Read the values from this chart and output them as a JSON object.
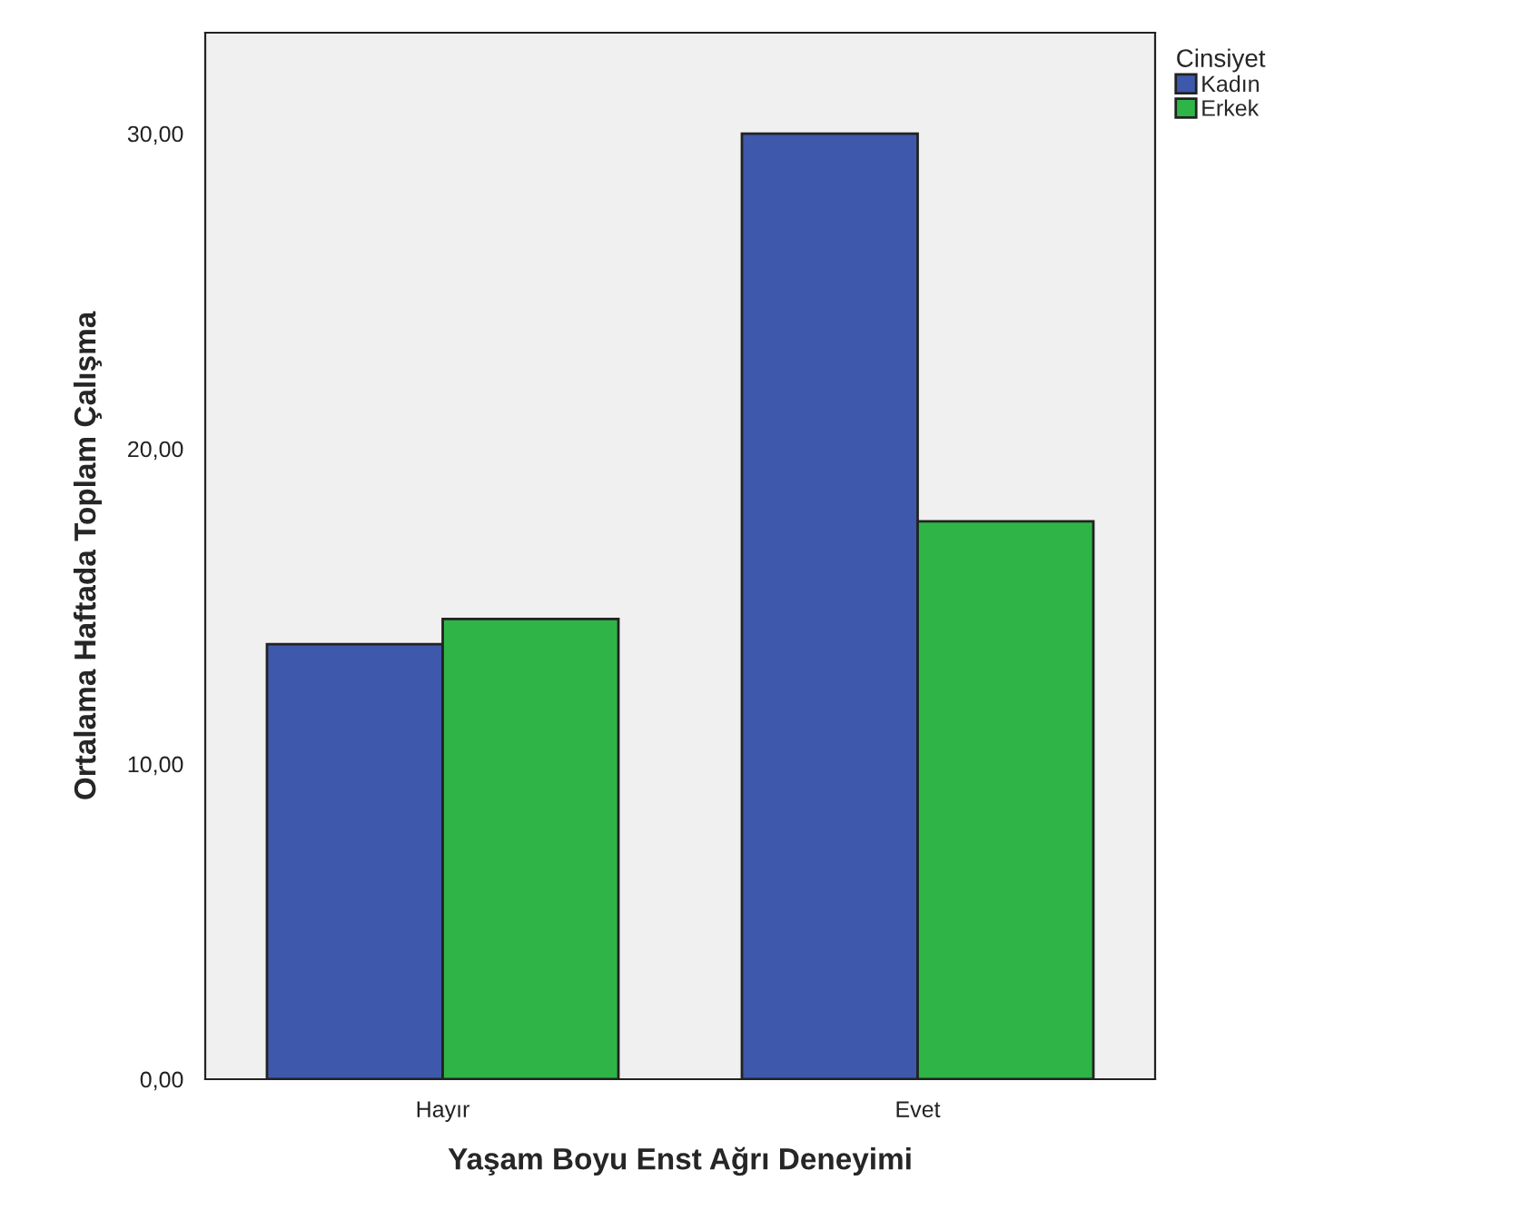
{
  "chart_data": {
    "type": "bar",
    "xlabel": "Yaşam Boyu Enst Ağrı Deneyimi",
    "ylabel": "Ortalama Haftada Toplam Çalışma",
    "legend_title": "Cinsiyet",
    "categories": [
      "Hayır",
      "Evet"
    ],
    "series": [
      {
        "name": "Kadın",
        "color": "#3e58ab",
        "values": [
          13.8,
          30.0
        ]
      },
      {
        "name": "Erkek",
        "color": "#2fb547",
        "values": [
          14.6,
          17.7
        ]
      }
    ],
    "ylim": [
      0,
      33.2
    ],
    "yticks": [
      {
        "value": 0,
        "label": "0,00"
      },
      {
        "value": 10,
        "label": "10,00"
      },
      {
        "value": 20,
        "label": "20,00"
      },
      {
        "value": 30,
        "label": "30,00"
      }
    ],
    "grid": false,
    "legend": "top right"
  }
}
